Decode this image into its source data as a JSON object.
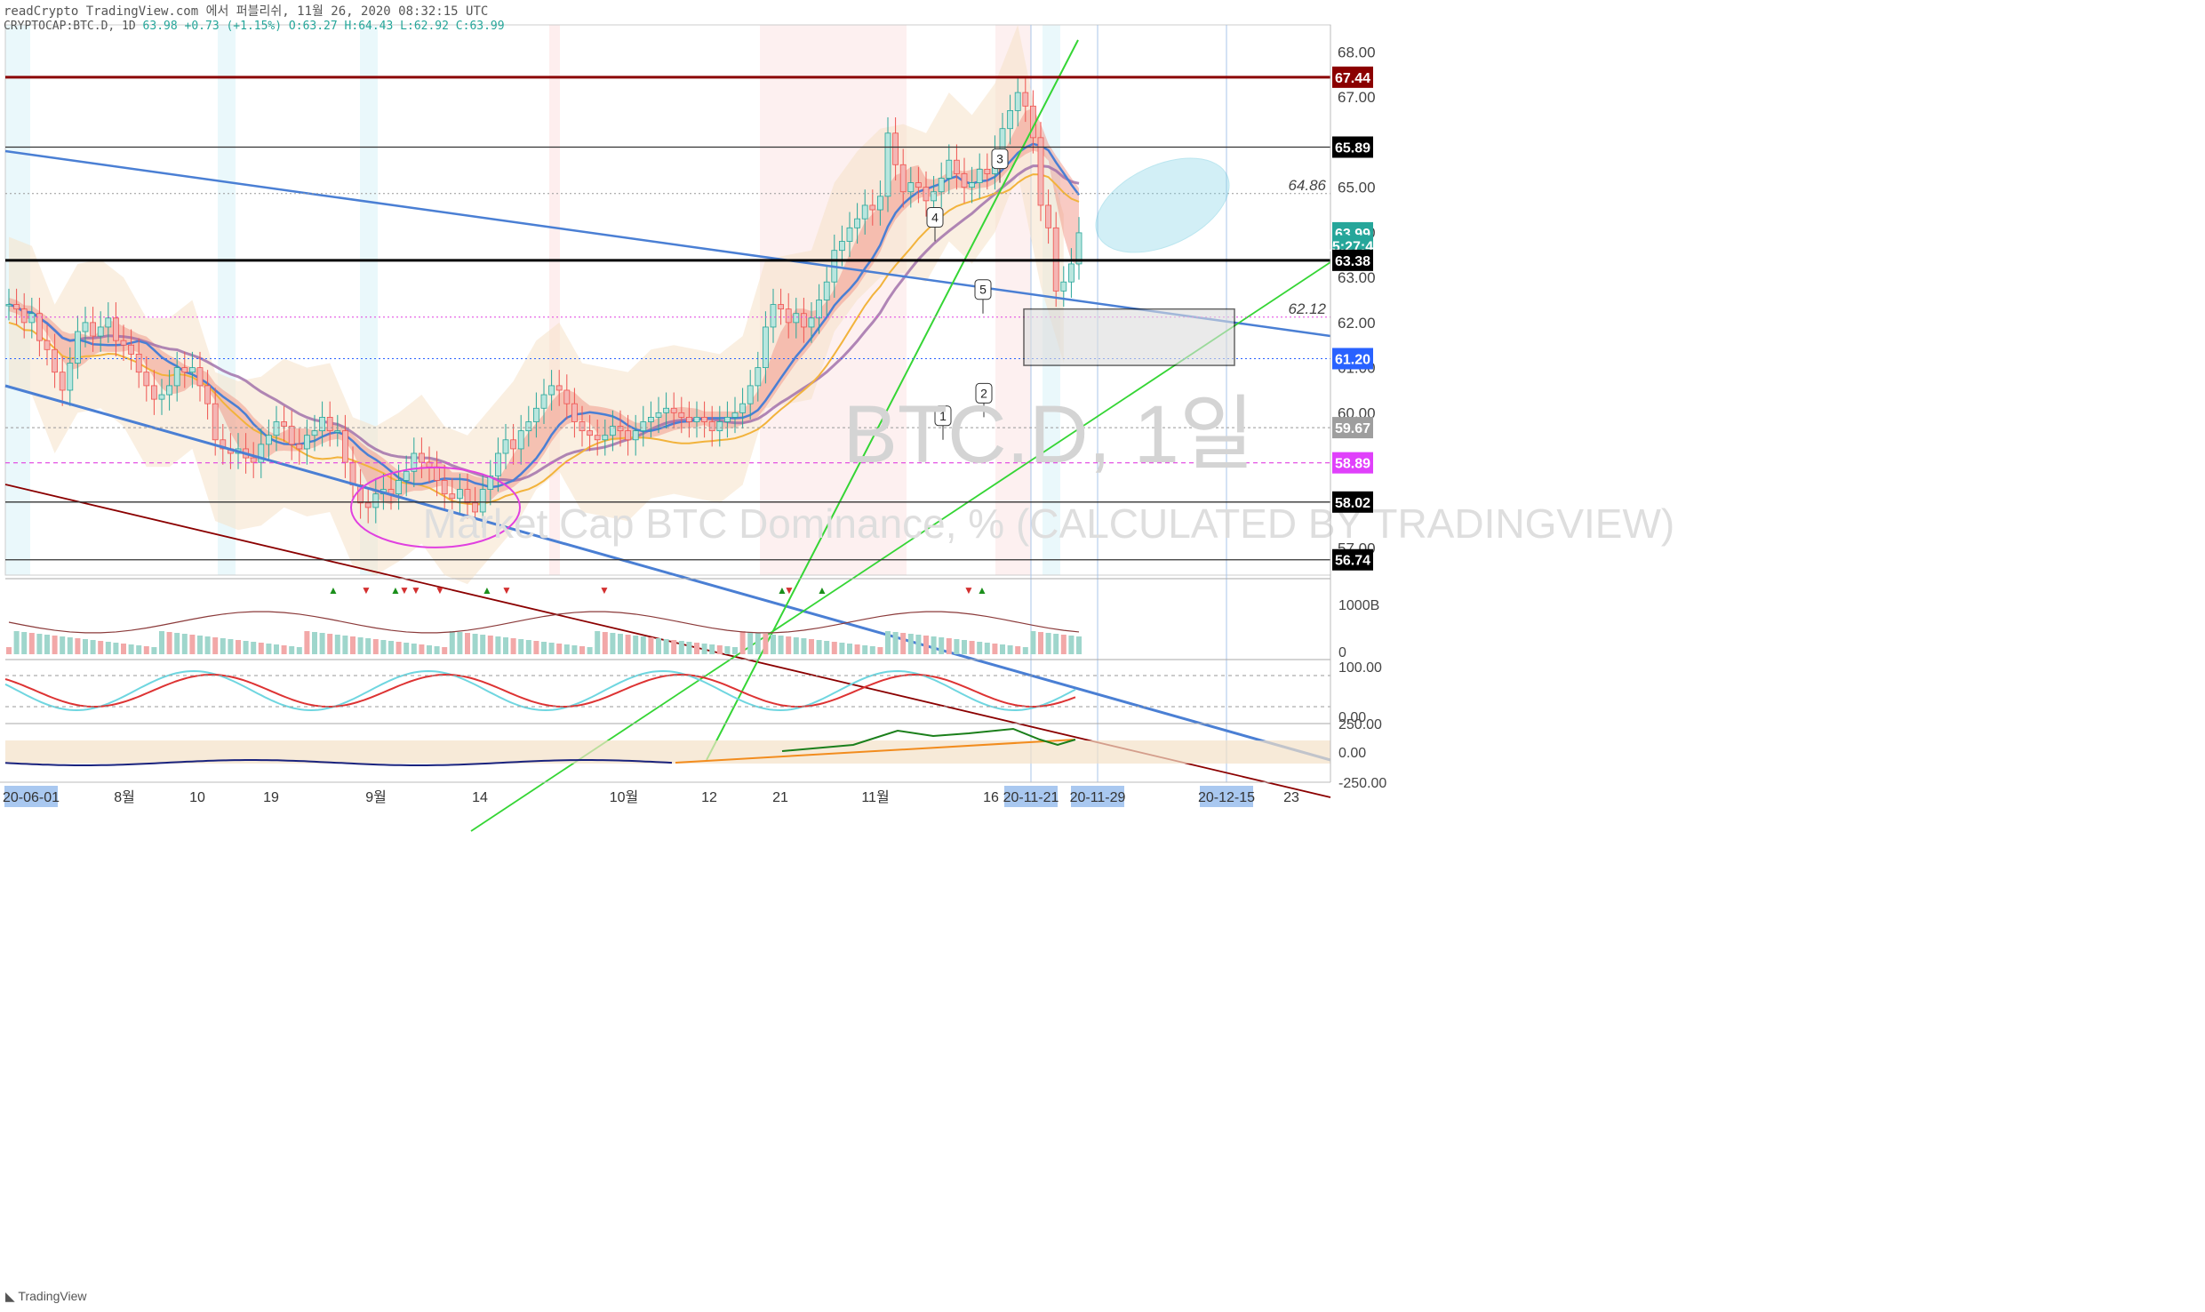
{
  "caption": {
    "text": "readCrypto TradingView.com 에서 퍼블리쉬, 11월 26, 2020 08:32:15 UTC"
  },
  "symbol_line": {
    "symbol": "CRYPTOCAP:BTC.D, 1D",
    "price": "63.98",
    "change": "+0.73 (+1.15%)",
    "open": "O:63.27",
    "high": "H:64.43",
    "low": "L:62.92",
    "close": "C:63.99"
  },
  "watermark": {
    "title": "BTC.D, 1일",
    "subtitle": "Market Cap BTC Dominance, % (CALCULATED BY TRADINGVIEW)"
  },
  "branding": {
    "name": "TradingView"
  },
  "colors": {
    "up": "#26a69a",
    "down": "#ef5350",
    "blue_line": "#4a7fd4",
    "green_line": "#35d535",
    "darkred_line": "#8b0000",
    "purple_line": "#9c6aa8",
    "orange_line": "#f2b33c",
    "magenta": "#e040e0",
    "cyan_ellipse": "#7fd3e6"
  },
  "chart_data": [
    {
      "type": "candlestick",
      "title": "BTC.D, 1일",
      "ylim": [
        56.4,
        68.6
      ],
      "y_ticks": [
        "68.00",
        "67.00",
        "65.00",
        "64.00",
        "63.00",
        "62.00",
        "61.00",
        "60.00",
        "57.00"
      ],
      "x_ticks": [
        "20-06-01",
        "8월",
        "10",
        "19",
        "9월",
        "14",
        "10월",
        "12",
        "21",
        "11월",
        "16",
        "20-11-21",
        "20-11-29",
        "20-12-15",
        "23"
      ],
      "highlighted_x_ticks": [
        "20-06-01",
        "20-11-21",
        "20-11-29",
        "20-12-15"
      ],
      "close_values": [
        62.4,
        62.3,
        62.0,
        62.2,
        61.6,
        61.4,
        60.9,
        60.5,
        61.1,
        61.8,
        62.0,
        61.7,
        61.9,
        62.1,
        61.6,
        61.5,
        61.3,
        60.9,
        60.6,
        60.3,
        60.4,
        60.6,
        61.0,
        60.9,
        61.0,
        60.6,
        60.2,
        59.4,
        59.2,
        59.1,
        59.2,
        59.0,
        58.9,
        59.3,
        59.5,
        59.8,
        59.7,
        59.3,
        59.2,
        59.5,
        59.6,
        59.9,
        59.6,
        59.6,
        58.9,
        58.4,
        58.0,
        57.9,
        58.2,
        58.3,
        58.2,
        58.5,
        58.7,
        59.1,
        58.9,
        58.8,
        58.5,
        58.2,
        58.1,
        58.3,
        58.0,
        57.8,
        58.3,
        58.6,
        59.1,
        59.4,
        59.2,
        59.6,
        59.8,
        60.1,
        60.4,
        60.6,
        60.5,
        60.2,
        59.8,
        59.6,
        59.5,
        59.4,
        59.5,
        59.7,
        59.6,
        59.4,
        59.6,
        59.8,
        59.9,
        60.0,
        60.1,
        60.0,
        59.9,
        59.8,
        59.9,
        59.8,
        59.6,
        59.8,
        59.9,
        60.0,
        60.2,
        60.6,
        61.0,
        61.9,
        62.4,
        62.3,
        62.0,
        62.2,
        61.9,
        62.1,
        62.5,
        62.9,
        63.6,
        63.8,
        64.1,
        64.3,
        64.6,
        64.5,
        64.8,
        66.2,
        65.5,
        64.9,
        65.1,
        65.0,
        64.7,
        64.9,
        65.2,
        65.6,
        65.3,
        65.0,
        65.1,
        65.4,
        65.3,
        65.8,
        66.3,
        66.7,
        67.1,
        66.8,
        66.1,
        64.6,
        64.1,
        62.7,
        62.9,
        63.3,
        63.99
      ],
      "horizontal_levels": [
        {
          "label": "67.44",
          "value": 67.44,
          "badge_color": "#8b0000"
        },
        {
          "label": "65.89",
          "value": 65.89,
          "badge_color": "#000000"
        },
        {
          "label": "64.86",
          "value": 64.86,
          "badge_color": ""
        },
        {
          "label": "63.99",
          "value": 63.99,
          "badge_color": "#26a69a"
        },
        {
          "label": "15:27:46",
          "value": 63.7,
          "badge_color": "#26a69a"
        },
        {
          "label": "63.38",
          "value": 63.38,
          "badge_color": "#000000"
        },
        {
          "label": "62.12",
          "value": 62.12,
          "badge_color": ""
        },
        {
          "label": "61.20",
          "value": 61.2,
          "badge_color": "#2962ff"
        },
        {
          "label": "59.67",
          "value": 59.67,
          "badge_color": "#9e9e9e"
        },
        {
          "label": "58.89",
          "value": 58.89,
          "badge_color": "#e040fb"
        },
        {
          "label": "58.02",
          "value": 58.02,
          "badge_color": "#000000"
        },
        {
          "label": "56.74",
          "value": 56.74,
          "badge_color": "#000000"
        }
      ],
      "wave_labels": [
        "1",
        "2",
        "3",
        "4",
        "5"
      ]
    },
    {
      "type": "bar",
      "name": "volume",
      "y_ticks": [
        "1000B",
        "0"
      ],
      "signal_marks": [
        "▲",
        "▼"
      ]
    },
    {
      "type": "line",
      "name": "oscillator",
      "y_ticks": [
        "100.00",
        "0.00"
      ]
    },
    {
      "type": "line",
      "name": "momentum",
      "y_ticks": [
        "250.00",
        "0.00",
        "-250.00"
      ]
    }
  ]
}
